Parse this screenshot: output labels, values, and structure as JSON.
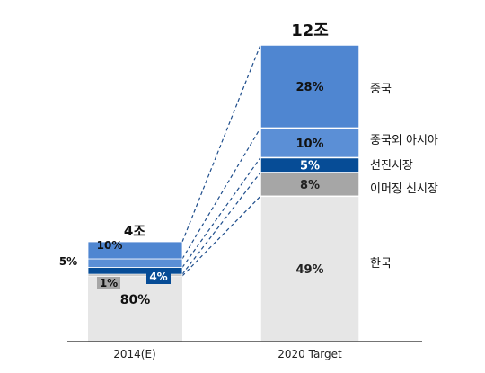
{
  "chart_data": {
    "type": "bar",
    "stacked": true,
    "categories": [
      "2014(E)",
      "2020 Target"
    ],
    "totals": [
      "4조",
      "12조"
    ],
    "series": [
      {
        "name": "한국",
        "values": [
          80,
          49
        ],
        "labels": [
          "80%",
          "49%"
        ],
        "color": "#e6e6e6",
        "label_color": "#222222"
      },
      {
        "name": "이머징 신시장",
        "values": [
          1,
          8
        ],
        "labels": [
          "1%",
          "8%"
        ],
        "color": "#a6a6a6",
        "label_color": "#222222"
      },
      {
        "name": "선진시장",
        "values": [
          4,
          5
        ],
        "labels": [
          "4%",
          "5%"
        ],
        "color": "#064c96",
        "label_color": "#ffffff"
      },
      {
        "name": "중국외 아시아",
        "values": [
          5,
          10
        ],
        "labels": [
          "5%",
          "10%"
        ],
        "color": "#5b8fd6",
        "label_color": "#111111"
      },
      {
        "name": "중국",
        "values": [
          10,
          28
        ],
        "labels": [
          "10%",
          "28%"
        ],
        "color": "#4f86d1",
        "label_color": "#111111"
      }
    ],
    "left_bar_labels": {
      "outer": "5%",
      "top": "10%",
      "grey": "1%",
      "navy": "4%"
    },
    "legend_placement": "right of second bar",
    "grid": false
  }
}
